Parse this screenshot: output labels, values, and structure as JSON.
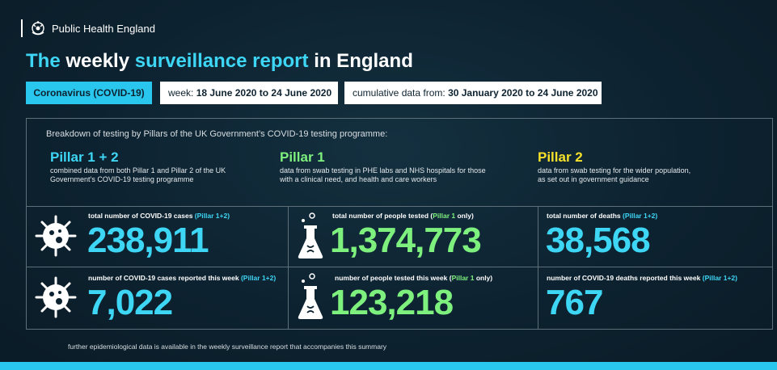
{
  "brand": {
    "name": "Public Health England",
    "icon": "crest-icon"
  },
  "headline": {
    "part1": "The",
    "part2": "weekly",
    "part3": "surveillance report",
    "part4": "in England"
  },
  "tags": {
    "covid": "Coronavirus (COVID-19)",
    "week_prefix": "week:",
    "week_value": "18 June 2020 to 24 June 2020",
    "cum_prefix": "cumulative data from:",
    "cum_value": "30 January 2020 to 24 June 2020"
  },
  "intro": "Breakdown of testing by Pillars of the UK Government’s COVID-19 testing programme:",
  "pillars": [
    {
      "title": "Pillar 1 + 2",
      "desc1": "combined data from both Pillar 1 and Pillar 2 of the UK",
      "desc2": "Government’s COVID-19 testing programme",
      "color": "#3ed6f5"
    },
    {
      "title": "Pillar 1",
      "desc1": "data from swab testing in PHE labs and NHS hospitals for those",
      "desc2": "with a clinical need, and health and care workers",
      "color": "#7ef07e"
    },
    {
      "title": "Pillar 2",
      "desc1": "data from swab testing for the wider population,",
      "desc2": "as set out in government guidance",
      "color": "#f5e12a"
    }
  ],
  "stats": {
    "total_cases": {
      "label": "total number of COVID-19 cases",
      "tag": "(Pillar 1+2)",
      "value": "238,911",
      "icon": "virus-icon"
    },
    "total_tested": {
      "label": "total number of people tested",
      "tag_open": "(",
      "tag": "Pillar 1",
      "tag_close": " only)",
      "value": "1,374,773",
      "icon": "flask-icon"
    },
    "total_deaths": {
      "label": "total number of deaths",
      "tag": "(Pillar 1+2)",
      "value": "38,568"
    },
    "week_cases": {
      "label": "number of COVID-19 cases reported this week",
      "tag": "(Pillar 1+2)",
      "value": "7,022",
      "icon": "virus-icon"
    },
    "week_tested": {
      "label": "number of people tested this week",
      "tag_open": "(",
      "tag": "Pillar 1",
      "tag_close": " only)",
      "value": "123,218",
      "icon": "flask-icon"
    },
    "week_deaths": {
      "label": "number of COVID-19 deaths reported this week",
      "tag": "(Pillar 1+2)",
      "value": "767"
    }
  },
  "footnote": "further epidemiological data is available in the weekly surveillance report that accompanies this summary",
  "colors": {
    "accent": "#3ed6f5",
    "pillar1": "#7ef07e",
    "pillar2": "#f5e12a",
    "background": "#0d2230"
  }
}
